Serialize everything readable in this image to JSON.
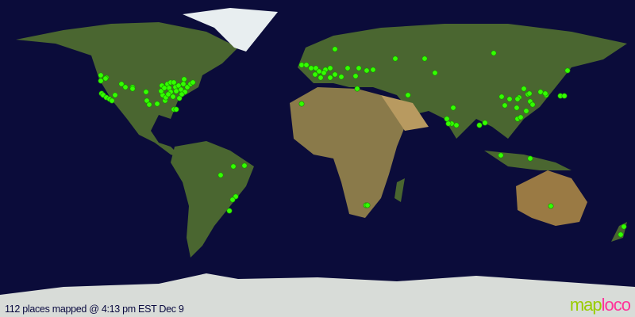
{
  "status": {
    "caption": "112 places mapped @ 4:13 pm EST Dec 9"
  },
  "logo": {
    "part1": "map",
    "part2": "loco",
    "color1": "#99cc00",
    "color2": "#ff3399"
  },
  "map": {
    "ocean_color": "#0b0c3a",
    "marker_color": "#33ff00",
    "marker_count": 112
  }
}
